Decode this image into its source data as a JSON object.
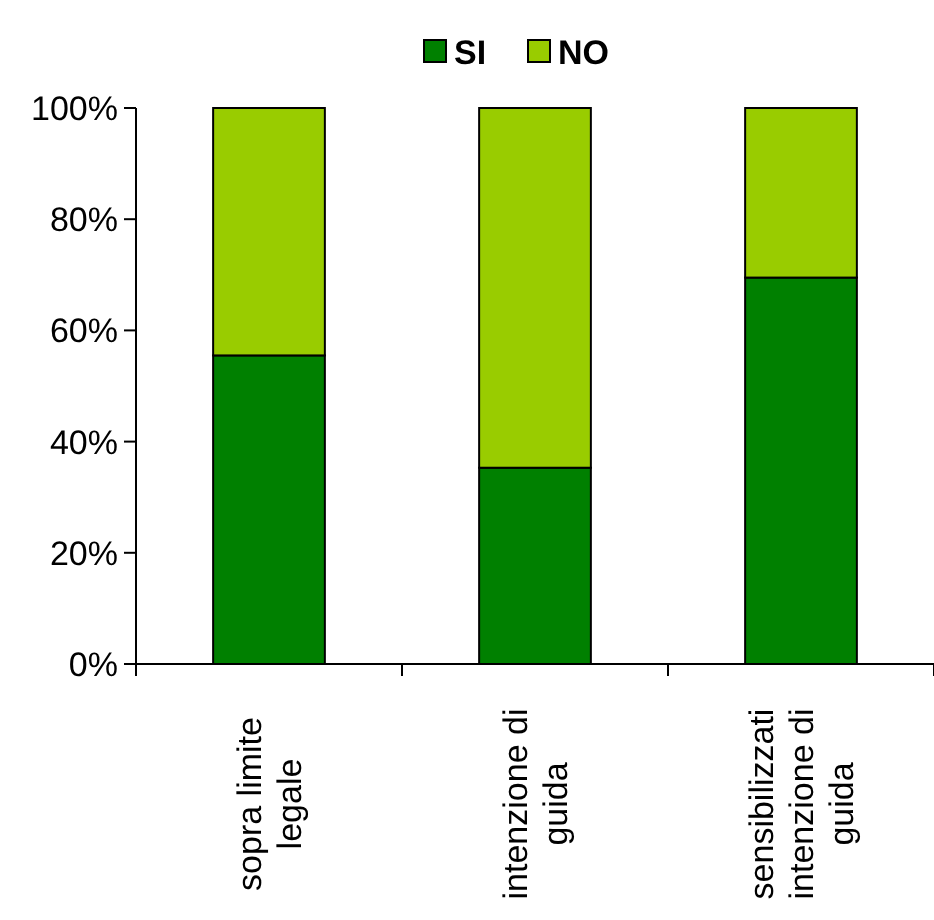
{
  "chart_data": {
    "type": "bar",
    "stacked": true,
    "categories": [
      "sopra limite\nlegale",
      "intenzione di\nguida",
      "sensibilizzati\nintenzione di\nguida"
    ],
    "series": [
      {
        "name": "SI",
        "color": "#008000",
        "values": [
          55.5,
          35.3,
          69.5
        ]
      },
      {
        "name": "NO",
        "color": "#99cc00",
        "values": [
          44.5,
          64.7,
          30.5
        ]
      }
    ],
    "ylim": [
      0,
      100
    ],
    "yticks": [
      {
        "value": 0,
        "label": "0%"
      },
      {
        "value": 20,
        "label": "20%"
      },
      {
        "value": 40,
        "label": "40%"
      },
      {
        "value": 60,
        "label": "60%"
      },
      {
        "value": 80,
        "label": "80%"
      },
      {
        "value": 100,
        "label": "100%"
      }
    ],
    "legend": "top",
    "grid": false
  }
}
